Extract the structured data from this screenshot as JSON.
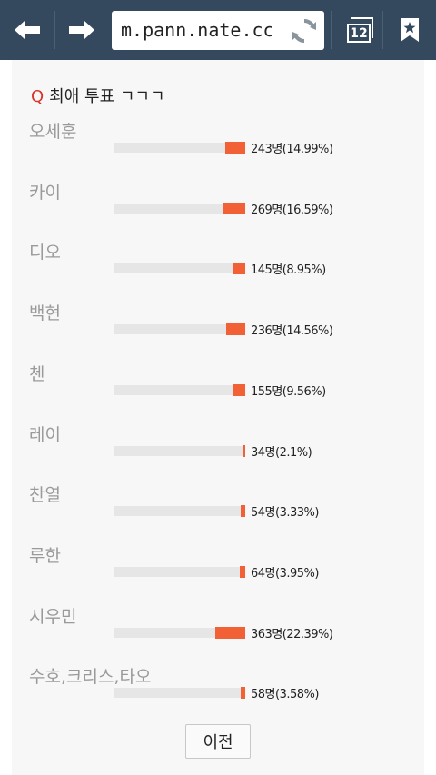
{
  "browser": {
    "url": "m.pann.nate.cc",
    "tab_count": "12",
    "icons": {
      "back": "arrow-left-icon",
      "forward": "arrow-right-icon",
      "refresh": "refresh-icon",
      "tabs": "tabs-icon",
      "bookmark": "bookmark-icon"
    }
  },
  "poll": {
    "q_marker": "Q",
    "title": "최애 투표 ㄱㄱㄱ",
    "accent_color": "#f26035",
    "options": [
      {
        "name": "오세훈",
        "result": "243명(14.99%)",
        "percent": 14.99
      },
      {
        "name": "카이",
        "result": "269명(16.59%)",
        "percent": 16.59
      },
      {
        "name": "디오",
        "result": "145명(8.95%)",
        "percent": 8.95
      },
      {
        "name": "백현",
        "result": "236명(14.56%)",
        "percent": 14.56
      },
      {
        "name": "첸",
        "result": "155명(9.56%)",
        "percent": 9.56
      },
      {
        "name": "레이",
        "result": "34명(2.1%)",
        "percent": 2.1
      },
      {
        "name": "찬열",
        "result": "54명(3.33%)",
        "percent": 3.33
      },
      {
        "name": "루한",
        "result": "64명(3.95%)",
        "percent": 3.95
      },
      {
        "name": "시우민",
        "result": "363명(22.39%)",
        "percent": 22.39
      },
      {
        "name": "수호,크리스,타오",
        "result": "58명(3.58%)",
        "percent": 3.58
      }
    ],
    "prev_label": "이전"
  }
}
